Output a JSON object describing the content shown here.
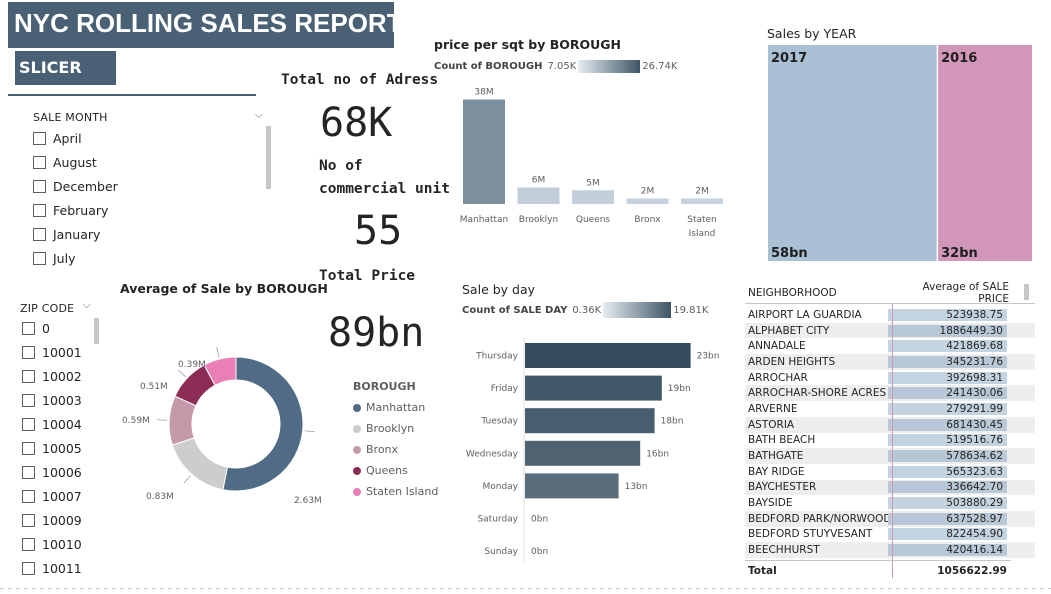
{
  "header": {
    "title": "NYC ROLLING SALES REPORT",
    "slicer_label": "SLICER"
  },
  "sale_month": {
    "heading": "SALE MONTH",
    "items": [
      "April",
      "August",
      "December",
      "February",
      "January",
      "July"
    ]
  },
  "zip_code": {
    "heading": "ZIP CODE",
    "items": [
      "0",
      "10001",
      "10002",
      "10003",
      "10004",
      "10005",
      "10006",
      "10007",
      "10009",
      "10010",
      "10011"
    ]
  },
  "kpis": {
    "address_label": "Total no of Adress",
    "address_value": "68K",
    "commercial_label_1": "No of",
    "commercial_label_2": "commercial unit",
    "commercial_value": "55",
    "price_label": "Total Price",
    "price_value": "89bn"
  },
  "price_sqt": {
    "title": "price per sqt by BOROUGH",
    "legend_label": "Count of BOROUGH",
    "legend_min": "7.05K",
    "legend_max": "26.74K"
  },
  "sale_by_day": {
    "title": "Sale by day",
    "legend_label": "Count of SALE DAY",
    "legend_min": "0.36K",
    "legend_max": "19.81K"
  },
  "avg_sale": {
    "title": "Average of Sale by BOROUGH",
    "legend_title": "BOROUGH"
  },
  "sales_year": {
    "title": "Sales by YEAR"
  },
  "neighborhood_table": {
    "col1": "NEIGHBORHOOD",
    "col2": "Average of SALE PRICE",
    "rows": [
      [
        "AIRPORT LA GUARDIA",
        "523938.75"
      ],
      [
        "ALPHABET CITY",
        "1886449.30"
      ],
      [
        "ANNADALE",
        "421869.68"
      ],
      [
        "ARDEN HEIGHTS",
        "345231.76"
      ],
      [
        "ARROCHAR",
        "392698.31"
      ],
      [
        "ARROCHAR-SHORE ACRES",
        "241430.06"
      ],
      [
        "ARVERNE",
        "279291.99"
      ],
      [
        "ASTORIA",
        "681430.45"
      ],
      [
        "BATH BEACH",
        "519516.76"
      ],
      [
        "BATHGATE",
        "578634.62"
      ],
      [
        "BAY RIDGE",
        "565323.63"
      ],
      [
        "BAYCHESTER",
        "336642.70"
      ],
      [
        "BAYSIDE",
        "503880.29"
      ],
      [
        "BEDFORD PARK/NORWOOD",
        "637528.97"
      ],
      [
        "BEDFORD STUYVESANT",
        "822454.90"
      ],
      [
        "BEECHHURST",
        "420416.14"
      ]
    ],
    "total_label": "Total",
    "total_value": "1056622.99"
  },
  "colors": {
    "header_bg": "#4a6175",
    "bar_dark": "#3e5566",
    "bar_light": "#bccbd8",
    "pie_manhattan": "#4f6b85",
    "pie_brooklyn": "#cdcdcd",
    "pie_bronx": "#c49aab",
    "pie_queens": "#8b2d55",
    "pie_staten": "#ea7fb6",
    "treemap_2017": "#a9c0d5",
    "treemap_2016": "#d296b8"
  },
  "chart_data": [
    {
      "type": "bar",
      "title": "price per sqt by BOROUGH",
      "categories": [
        "Manhattan",
        "Brooklyn",
        "Queens",
        "Bronx",
        "Staten Island"
      ],
      "values": [
        38,
        6,
        5,
        2,
        2
      ],
      "data_labels": [
        "38M",
        "6M",
        "5M",
        "2M",
        "2M"
      ],
      "color_values": [
        26.74,
        8.4,
        7.8,
        7.2,
        7.05
      ],
      "ylim": [
        0,
        40
      ]
    },
    {
      "type": "bar",
      "orientation": "horizontal",
      "title": "Sale by day",
      "categories": [
        "Thursday",
        "Friday",
        "Tuesday",
        "Wednesday",
        "Monday",
        "Saturday",
        "Sunday"
      ],
      "values": [
        23,
        19,
        18,
        16,
        13,
        0,
        0
      ],
      "data_labels": [
        "23bn",
        "19bn",
        "18bn",
        "16bn",
        "13bn",
        "0bn",
        "0bn"
      ],
      "color_values": [
        19.81,
        16.5,
        15.5,
        14.2,
        11.5,
        0.36,
        0.36
      ],
      "xlim": [
        0,
        25
      ]
    },
    {
      "type": "pie",
      "title": "Average of Sale by BOROUGH",
      "donut": true,
      "categories": [
        "Manhattan",
        "Brooklyn",
        "Bronx",
        "Queens",
        "Staten Island"
      ],
      "values": [
        2.63,
        0.83,
        0.59,
        0.51,
        0.39
      ],
      "data_labels": [
        "2.63M",
        "0.83M",
        "0.59M",
        "0.51M",
        "0.39M"
      ],
      "legend": "right"
    },
    {
      "type": "treemap",
      "title": "Sales by YEAR",
      "categories": [
        "2017",
        "2016"
      ],
      "values": [
        58,
        32
      ],
      "data_labels": [
        "58bn",
        "32bn"
      ]
    }
  ]
}
